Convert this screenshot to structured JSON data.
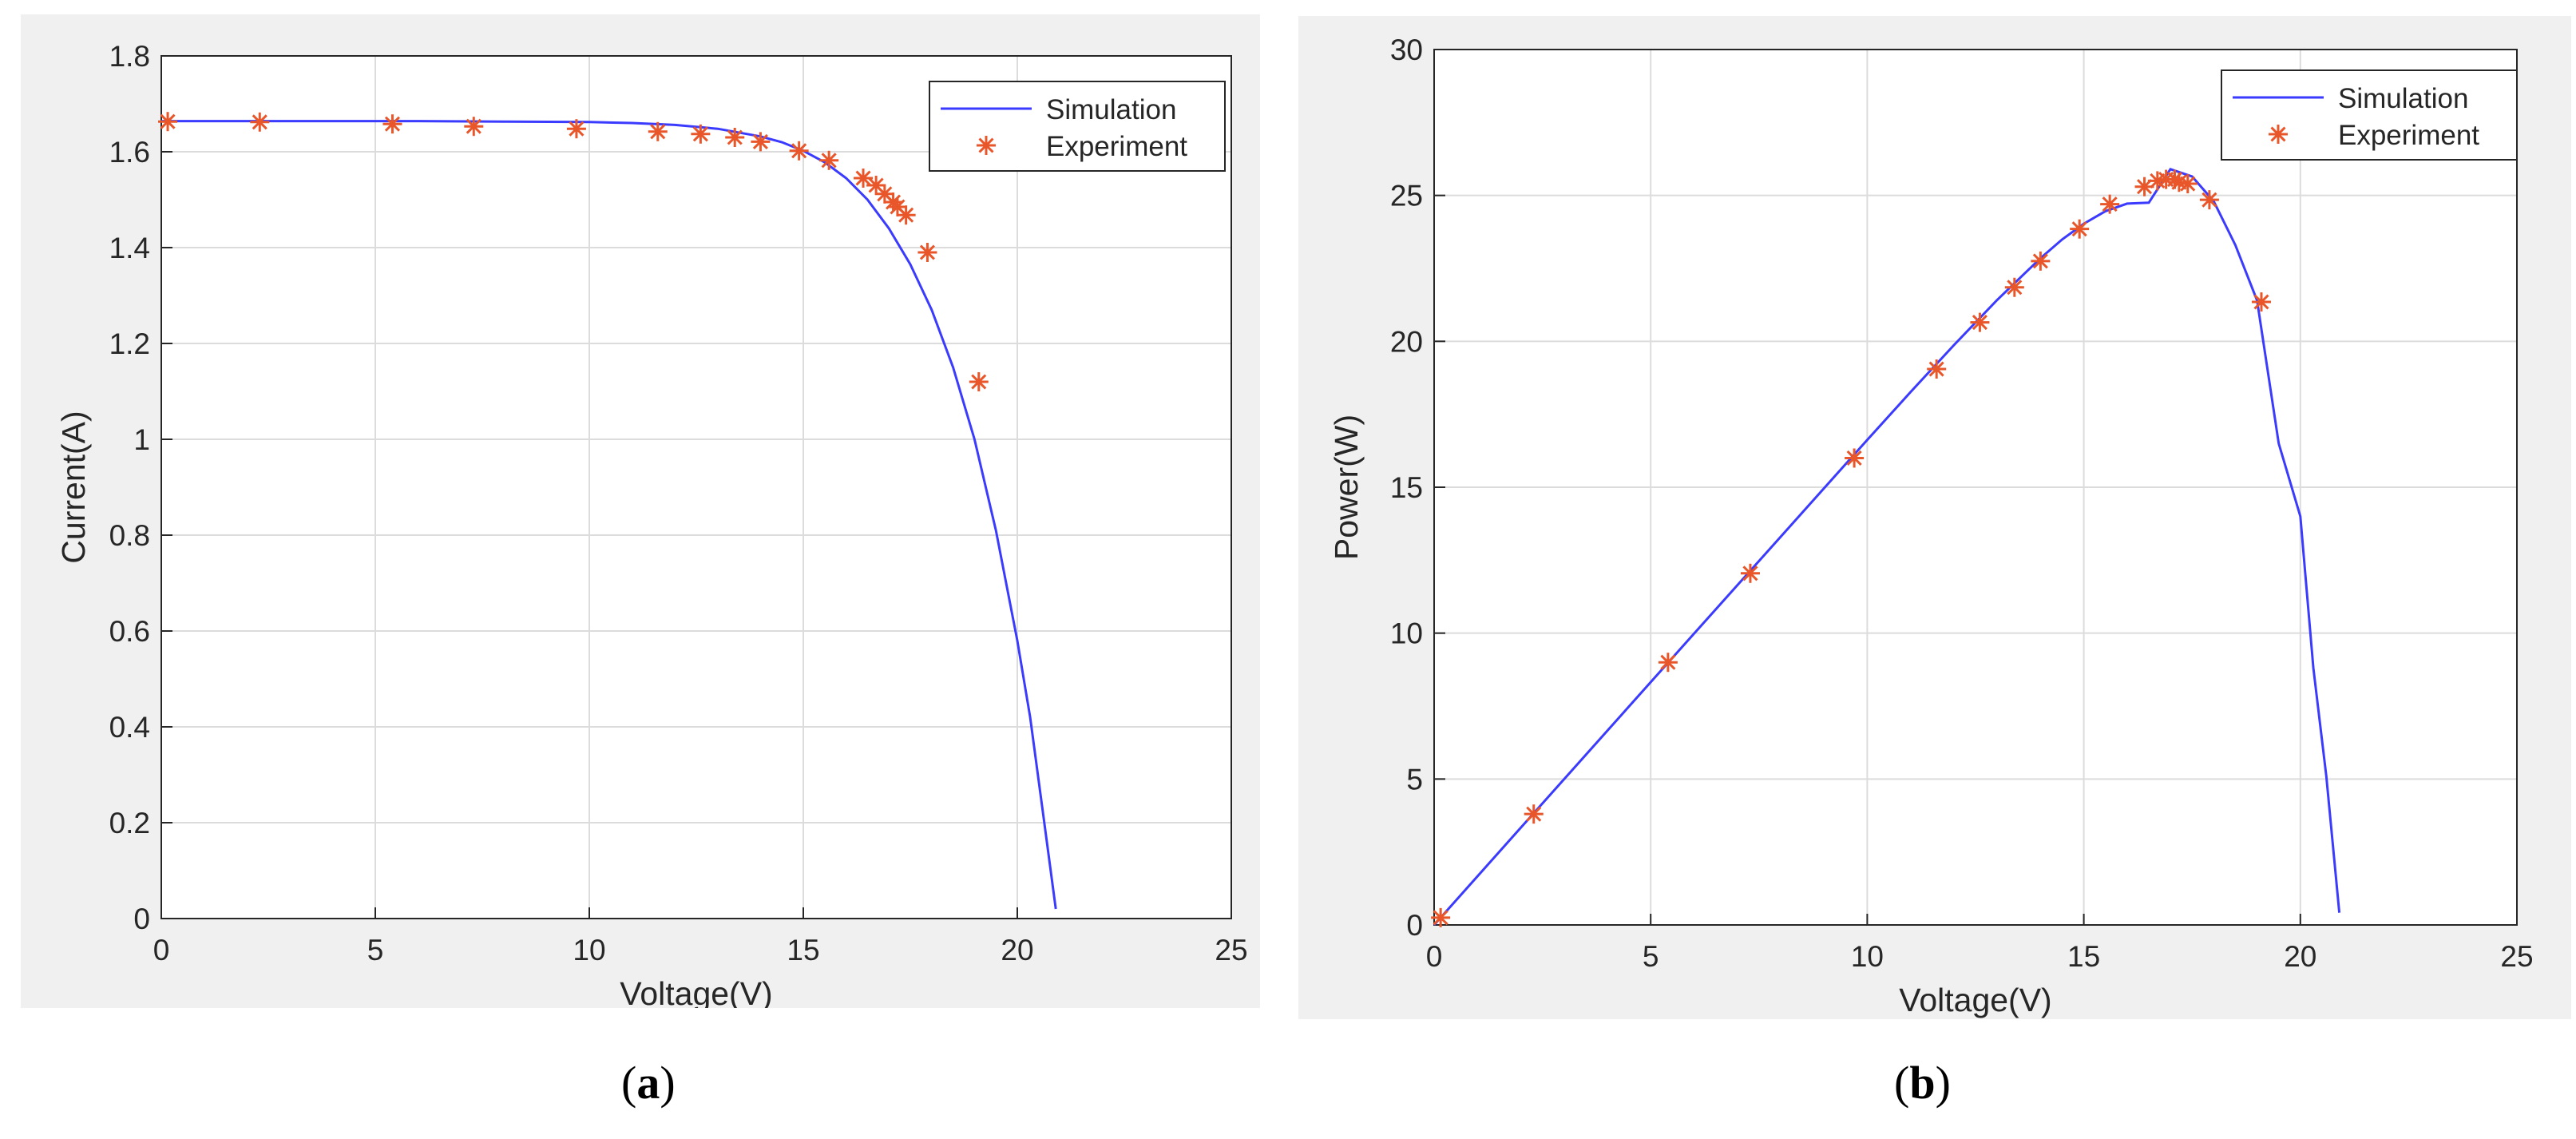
{
  "chart_data": [
    {
      "type": "line",
      "panel_label": "a",
      "xlabel": "Voltage(V)",
      "ylabel": "Current(A)",
      "xlim": [
        0,
        25
      ],
      "ylim": [
        0,
        1.8
      ],
      "xticks": [
        "0",
        "5",
        "10",
        "15",
        "20",
        "25"
      ],
      "yticks": [
        "0",
        "0.2",
        "0.4",
        "0.6",
        "0.8",
        "1",
        "1.2",
        "1.4",
        "1.6",
        "1.8"
      ],
      "grid": true,
      "legend_position": "top-right",
      "series": [
        {
          "name": "Simulation",
          "style": "line",
          "color": "#3b3bff",
          "x": [
            0,
            2,
            4,
            6,
            8,
            10,
            11,
            12,
            13,
            14,
            14.5,
            15,
            15.5,
            16,
            16.5,
            17,
            17.5,
            18,
            18.5,
            19,
            19.5,
            20,
            20.3,
            20.6,
            20.9
          ],
          "y": [
            1.664,
            1.664,
            1.664,
            1.664,
            1.663,
            1.662,
            1.66,
            1.656,
            1.648,
            1.632,
            1.62,
            1.602,
            1.578,
            1.545,
            1.5,
            1.44,
            1.365,
            1.27,
            1.15,
            1.0,
            0.81,
            0.58,
            0.42,
            0.22,
            0.02
          ]
        },
        {
          "name": "Experiment",
          "style": "asterisk",
          "color": "#e8562a",
          "x": [
            0.15,
            2.3,
            5.4,
            7.3,
            9.7,
            11.6,
            12.6,
            13.4,
            14.0,
            14.9,
            15.6,
            16.4,
            16.7,
            16.9,
            17.1,
            17.2,
            17.4,
            17.9,
            19.1
          ],
          "y": [
            1.663,
            1.662,
            1.658,
            1.653,
            1.648,
            1.642,
            1.637,
            1.63,
            1.621,
            1.602,
            1.582,
            1.545,
            1.53,
            1.512,
            1.495,
            1.485,
            1.468,
            1.39,
            1.12
          ]
        }
      ]
    },
    {
      "type": "line",
      "panel_label": "b",
      "xlabel": "Voltage(V)",
      "ylabel": "Power(W)",
      "xlim": [
        0,
        25
      ],
      "ylim": [
        0,
        30
      ],
      "xticks": [
        "0",
        "5",
        "10",
        "15",
        "20",
        "25"
      ],
      "yticks": [
        "0",
        "5",
        "10",
        "15",
        "20",
        "25",
        "30"
      ],
      "grid": true,
      "legend_position": "top-right",
      "series": [
        {
          "name": "Simulation",
          "style": "line",
          "color": "#3b3bff",
          "x": [
            0,
            2,
            4,
            6,
            8,
            10,
            11,
            12,
            13,
            14,
            14.5,
            15,
            15.5,
            16,
            16.5,
            17,
            17.5,
            18,
            18.5,
            19,
            19.5,
            20,
            20.3,
            20.6,
            20.9
          ],
          "y": [
            0.0,
            3.33,
            6.66,
            9.98,
            13.3,
            16.62,
            18.26,
            19.87,
            21.42,
            22.85,
            23.49,
            24.03,
            24.46,
            24.72,
            24.75,
            25.9,
            25.65,
            24.8,
            23.3,
            21.4,
            16.5,
            14.0,
            8.8,
            5.1,
            0.42
          ]
        },
        {
          "name": "Experiment",
          "style": "asterisk",
          "color": "#e8562a",
          "x": [
            0.15,
            2.3,
            5.4,
            7.3,
            9.7,
            11.6,
            12.6,
            13.4,
            14.0,
            14.9,
            15.6,
            16.4,
            16.7,
            16.9,
            17.1,
            17.2,
            17.4,
            17.9,
            19.1
          ],
          "y": [
            0.25,
            3.8,
            9.0,
            12.05,
            16.0,
            19.05,
            20.65,
            21.85,
            22.75,
            23.85,
            24.7,
            25.3,
            25.5,
            25.55,
            25.55,
            25.45,
            25.4,
            24.85,
            21.35
          ]
        }
      ]
    }
  ]
}
